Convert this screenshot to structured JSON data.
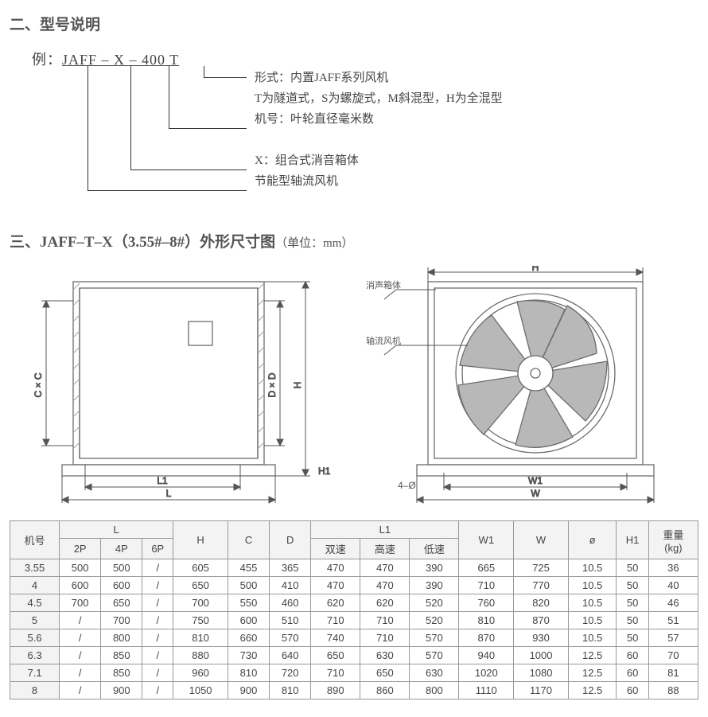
{
  "section2": {
    "title": "二、型号说明",
    "example_label": "例：",
    "example_code": "JAFF – X – 400  T",
    "desc": [
      "形式：内置JAFF系列风机",
      "T为隧道式，S为螺旋式，M斜混型，H为全混型",
      "机号：叶轮直径毫米数",
      "X：组合式消音箱体",
      "节能型轴流风机"
    ]
  },
  "section3": {
    "title_main": "三、JAFF–T–X（3.55#–8#）外形尺寸图",
    "title_unit": "（单位：mm）"
  },
  "diagram_labels": {
    "H": "H",
    "L": "L",
    "L1": "L1",
    "H1": "H1",
    "CxC": "C × C",
    "DxD": "D × D",
    "W": "W",
    "W1": "W1",
    "hole": "4–Ø",
    "box": "消声箱体",
    "fan": "轴流风机"
  },
  "diagram_style": {
    "stroke": "#6c6c6c",
    "hatch": "#a4a4a4",
    "line_thin": 1,
    "line_med": 1.4,
    "fan_blade_fill": "#b8b8b8",
    "fan_hub_fill": "#ffffff",
    "panel_fill": "#ffffff"
  },
  "table": {
    "groupHeaders": [
      "机号",
      "L",
      "H",
      "C",
      "D",
      "L1",
      "W1",
      "W",
      "ø",
      "H1",
      "重量\n(kg)"
    ],
    "L_sub": [
      "2P",
      "4P",
      "6P"
    ],
    "L1_sub": [
      "双速",
      "高速",
      "低速"
    ],
    "rows": [
      [
        "3.55",
        "500",
        "500",
        "/",
        "605",
        "455",
        "365",
        "470",
        "470",
        "390",
        "665",
        "725",
        "10.5",
        "50",
        "36"
      ],
      [
        "4",
        "600",
        "600",
        "/",
        "650",
        "500",
        "410",
        "470",
        "470",
        "390",
        "710",
        "770",
        "10.5",
        "50",
        "40"
      ],
      [
        "4.5",
        "700",
        "650",
        "/",
        "700",
        "550",
        "460",
        "620",
        "620",
        "520",
        "760",
        "820",
        "10.5",
        "50",
        "46"
      ],
      [
        "5",
        "/",
        "700",
        "/",
        "750",
        "600",
        "510",
        "710",
        "710",
        "520",
        "810",
        "870",
        "10.5",
        "50",
        "51"
      ],
      [
        "5.6",
        "/",
        "800",
        "/",
        "810",
        "660",
        "570",
        "740",
        "710",
        "570",
        "870",
        "930",
        "10.5",
        "50",
        "57"
      ],
      [
        "6.3",
        "/",
        "850",
        "/",
        "880",
        "730",
        "640",
        "650",
        "630",
        "570",
        "940",
        "1000",
        "12.5",
        "60",
        "70"
      ],
      [
        "7.1",
        "/",
        "850",
        "/",
        "960",
        "810",
        "720",
        "710",
        "650",
        "630",
        "1020",
        "1080",
        "12.5",
        "60",
        "81"
      ],
      [
        "8",
        "/",
        "900",
        "/",
        "1050",
        "900",
        "810",
        "890",
        "860",
        "800",
        "1110",
        "1170",
        "12.5",
        "60",
        "88"
      ]
    ]
  }
}
